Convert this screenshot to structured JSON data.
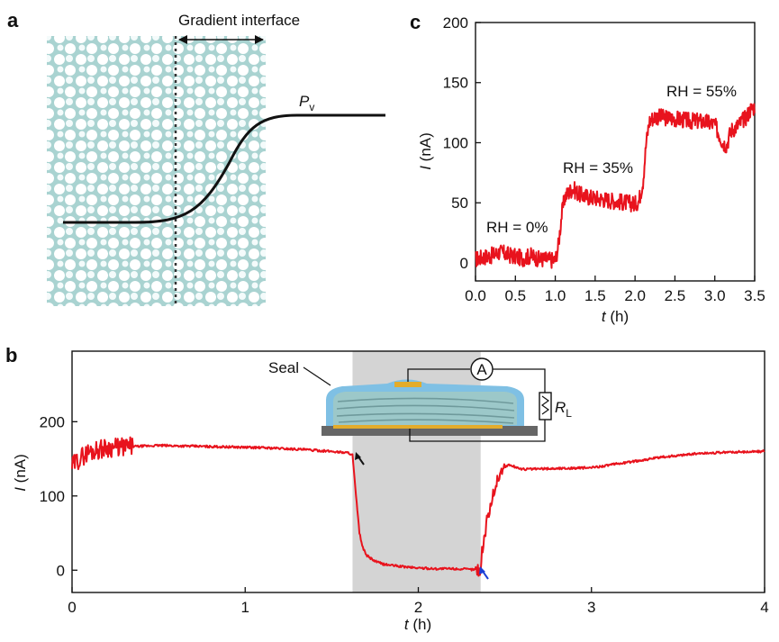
{
  "panel_a": {
    "label": "a",
    "interface_label": "Gradient interface",
    "curve_label_main": "P",
    "curve_label_sub": "v"
  },
  "chart_data": [
    {
      "id": "panel_c",
      "panel_label": "c",
      "type": "line",
      "title": "",
      "xlabel_var": "t",
      "xlabel_unit": " (h)",
      "ylabel_var": "I",
      "ylabel_unit": " (nA)",
      "xlim": [
        0,
        3.5
      ],
      "ylim": [
        -15,
        200
      ],
      "xticks": [
        0,
        0.5,
        1.0,
        1.5,
        2.0,
        2.5,
        3.0,
        3.5
      ],
      "xtick_labels": [
        "0.0",
        "0.5",
        "1.0",
        "1.5",
        "2.0",
        "2.5",
        "3.0",
        "3.5"
      ],
      "yticks": [
        0,
        50,
        100,
        150,
        200
      ],
      "ytick_labels": [
        "0",
        "50",
        "100",
        "150",
        "200"
      ],
      "color": "#e8131d",
      "series": [
        {
          "name": "I",
          "x": [
            0,
            0.1,
            0.2,
            0.3,
            0.4,
            0.5,
            0.6,
            0.7,
            0.8,
            0.9,
            1.0,
            1.04,
            1.08,
            1.12,
            1.16,
            1.22,
            1.3,
            1.4,
            1.5,
            1.6,
            1.7,
            1.8,
            1.9,
            2.0,
            2.05,
            2.1,
            2.14,
            2.18,
            2.25,
            2.35,
            2.5,
            2.6,
            2.7,
            2.8,
            2.9,
            3.0,
            3.1,
            3.15,
            3.2,
            3.3,
            3.4,
            3.45,
            3.5
          ],
          "y": [
            3,
            5,
            6,
            9,
            7,
            5,
            4,
            6,
            3,
            3,
            2,
            15,
            40,
            55,
            58,
            62,
            57,
            55,
            54,
            53,
            52,
            51,
            50,
            49,
            52,
            68,
            100,
            118,
            122,
            121,
            120,
            119,
            118,
            118,
            117,
            115,
            100,
            98,
            110,
            115,
            122,
            128,
            130
          ]
        }
      ],
      "annotations": [
        "RH = 0%",
        "RH = 35%",
        "RH = 55%"
      ]
    },
    {
      "id": "panel_b",
      "panel_label": "b",
      "type": "line",
      "title": "",
      "xlabel_var": "t",
      "xlabel_unit": " (h)",
      "ylabel_var": "I",
      "ylabel_unit": " (nA)",
      "xlim": [
        0,
        4
      ],
      "ylim": [
        -30,
        295
      ],
      "xticks": [
        0,
        1,
        2,
        3,
        4
      ],
      "xtick_labels": [
        "0",
        "1",
        "2",
        "3",
        "4"
      ],
      "yticks": [
        0,
        100,
        200
      ],
      "ytick_labels": [
        "0",
        "100",
        "200"
      ],
      "shaded_x": [
        1.62,
        2.36
      ],
      "color": "#e8131d",
      "series": [
        {
          "name": "I",
          "x": [
            0,
            0.05,
            0.1,
            0.2,
            0.3,
            0.5,
            0.7,
            0.9,
            1.1,
            1.3,
            1.5,
            1.6,
            1.62,
            1.64,
            1.66,
            1.68,
            1.7,
            1.75,
            1.8,
            1.9,
            2.0,
            2.1,
            2.2,
            2.3,
            2.35,
            2.36,
            2.37,
            2.4,
            2.44,
            2.48,
            2.52,
            2.6,
            2.8,
            3.0,
            3.2,
            3.4,
            3.6,
            3.8,
            4.0
          ],
          "y": [
            140,
            152,
            160,
            165,
            166,
            168,
            167,
            166,
            165,
            163,
            160,
            158,
            155,
            100,
            50,
            30,
            20,
            12,
            8,
            5,
            3,
            2,
            2,
            1,
            1,
            0,
            30,
            70,
            110,
            135,
            142,
            136,
            137,
            138,
            145,
            152,
            157,
            159,
            160
          ]
        }
      ],
      "annotations": [
        "Seal",
        "A",
        "R",
        "L"
      ]
    }
  ]
}
